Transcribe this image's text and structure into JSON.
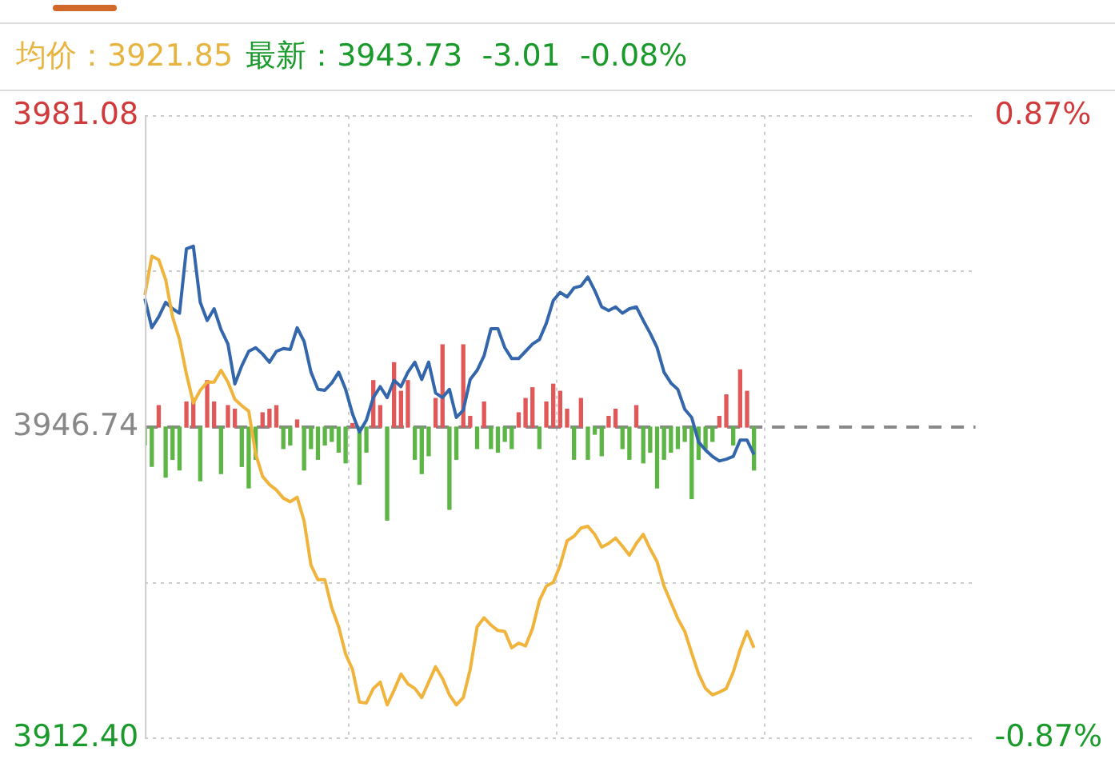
{
  "chart_data": {
    "type": "line",
    "annotations": [
      "均价：3921.85",
      "最新：3943.73  -3.01  -0.08%"
    ],
    "categories": [
      null,
      null,
      null,
      null,
      null,
      null,
      null,
      null,
      null,
      null,
      null,
      null,
      null,
      null,
      null,
      null,
      null,
      null,
      null,
      null,
      null,
      null,
      null,
      null,
      null,
      null,
      null,
      null,
      null,
      null,
      null,
      null,
      null,
      null,
      null,
      null,
      null,
      null,
      null,
      null,
      null,
      null,
      null,
      null,
      null,
      null,
      null,
      null,
      null,
      null,
      null,
      null,
      null,
      null,
      null,
      null,
      null,
      null,
      null,
      null,
      null,
      null,
      null,
      null,
      null,
      null,
      null,
      null,
      null,
      null,
      null,
      null,
      null,
      null,
      null,
      null,
      null,
      null,
      null,
      null,
      null,
      null,
      null,
      null,
      null,
      null,
      null,
      null,
      null,
      null,
      null,
      null,
      null,
      null,
      null,
      null,
      null,
      null,
      null,
      null,
      null,
      null,
      null,
      null,
      null,
      null,
      null,
      null,
      null,
      null,
      null,
      null,
      null,
      null,
      null,
      null,
      null,
      null,
      null,
      null,
      null
    ],
    "series": [
      {
        "type": "bar",
        "axis": "y2",
        "values": [
          -0.05,
          -0.11,
          0.06,
          -0.14,
          -0.09,
          -0.12,
          0.07,
          0.08,
          -0.15,
          0.13,
          0.07,
          -0.13,
          0.06,
          0.05,
          -0.11,
          -0.17,
          -0.09,
          0.04,
          0.05,
          0.06,
          -0.06,
          -0.05,
          0.02,
          -0.12,
          -0.06,
          -0.09,
          -0.05,
          -0.04,
          -0.07,
          -0.1,
          0.01,
          -0.16,
          -0.07,
          0.13,
          0.06,
          -0.26,
          0.18,
          0.1,
          0.13,
          -0.09,
          -0.13,
          -0.08,
          0.08,
          0.23,
          -0.23,
          -0.09,
          0.23,
          0.03,
          -0.06,
          0.07,
          -0.06,
          -0.07,
          -0.04,
          -0.06,
          0.04,
          0.08,
          0.11,
          -0.06,
          0.07,
          0.12,
          0.1,
          0.05,
          -0.09,
          0.08,
          -0.09,
          -0.02,
          -0.08,
          0.03,
          0.05,
          -0.06,
          -0.09,
          0.06,
          -0.1,
          -0.07,
          -0.17,
          -0.09,
          -0.07,
          -0.06,
          -0.04,
          -0.2,
          -0.09,
          -0.06,
          -0.04,
          0.03,
          0.09,
          -0.05,
          0.16,
          0.1,
          -0.12,
          null,
          null,
          null,
          null,
          null,
          null,
          null,
          null,
          null,
          null,
          null,
          null,
          null,
          null,
          null,
          null,
          null,
          null,
          null,
          null,
          null,
          null,
          null,
          null,
          null,
          null,
          null,
          null,
          null,
          null,
          null,
          null
        ],
        "colors": [
          "#5cb544",
          "#5cb544",
          "#e05858",
          "#5cb544",
          "#5cb544",
          "#5cb544",
          "#e05858",
          "#e05858",
          "#5cb544",
          "#e05858",
          "#e05858",
          "#5cb544",
          "#e05858",
          "#e05858",
          "#5cb544",
          "#5cb544",
          "#5cb544",
          "#e05858",
          "#e05858",
          "#e05858",
          "#5cb544",
          "#5cb544",
          "#e05858",
          "#5cb544",
          "#5cb544",
          "#5cb544",
          "#5cb544",
          "#5cb544",
          "#5cb544",
          "#5cb544",
          "#e05858",
          "#5cb544",
          "#5cb544",
          "#e05858",
          "#e05858",
          "#5cb544",
          "#e05858",
          "#e05858",
          "#e05858",
          "#5cb544",
          "#5cb544",
          "#5cb544",
          "#e05858",
          "#e05858",
          "#5cb544",
          "#5cb544",
          "#e05858",
          "#e05858",
          "#5cb544",
          "#e05858",
          "#5cb544",
          "#5cb544",
          "#5cb544",
          "#5cb544",
          "#e05858",
          "#e05858",
          "#e05858",
          "#5cb544",
          "#e05858",
          "#e05858",
          "#e05858",
          "#e05858",
          "#5cb544",
          "#e05858",
          "#5cb544",
          "#5cb544",
          "#5cb544",
          "#e05858",
          "#e05858",
          "#5cb544",
          "#5cb544",
          "#e05858",
          "#5cb544",
          "#5cb544",
          "#5cb544",
          "#5cb544",
          "#5cb544",
          "#5cb544",
          "#5cb544",
          "#5cb544",
          "#5cb544",
          "#5cb544",
          "#5cb544",
          "#e05858",
          "#e05858",
          "#5cb544",
          "#e05858",
          "#e05858",
          "#5cb544",
          null,
          null,
          null,
          null,
          null,
          null,
          null,
          null,
          null,
          null,
          null,
          null,
          null,
          null,
          null,
          null,
          null,
          null,
          null,
          null,
          null,
          null,
          null,
          null,
          null,
          null,
          null,
          null,
          null,
          null,
          null,
          null
        ]
      },
      {
        "color": "#f0b43c",
        "values": [
          3961.3,
          3965.6,
          3965.2,
          3963.0,
          3958.9,
          3956.4,
          3952.6,
          3949.4,
          3950.8,
          3951.7,
          3951.7,
          3953.0,
          3951.7,
          3949.8,
          3949.1,
          3948.5,
          3943.8,
          3941.3,
          3940.4,
          3939.8,
          3938.9,
          3938.5,
          3939.0,
          3936.4,
          3931.5,
          3929.9,
          3929.9,
          3926.8,
          3924.7,
          3921.7,
          3920.0,
          3916.4,
          3916.3,
          3917.9,
          3918.6,
          3916.1,
          3917.7,
          3919.5,
          3918.4,
          3917.9,
          3916.9,
          3918.6,
          3920.3,
          3919.0,
          3917.2,
          3916.1,
          3916.9,
          3920.0,
          3924.7,
          3925.7,
          3924.9,
          3924.3,
          3924.2,
          3922.4,
          3922.9,
          3922.6,
          3924.5,
          3927.6,
          3929.2,
          3929.6,
          3931.5,
          3934.2,
          3934.7,
          3935.6,
          3935.8,
          3934.9,
          3933.5,
          3933.9,
          3934.5,
          3933.6,
          3932.6,
          3933.9,
          3934.9,
          3933.3,
          3931.9,
          3929.2,
          3927.4,
          3925.6,
          3924.2,
          3921.8,
          3919.5,
          3917.9,
          3917.2,
          3917.5,
          3917.9,
          3919.7,
          3922.2,
          3924.2,
          3922.4,
          null,
          null,
          null,
          null,
          null,
          null,
          null,
          null,
          null,
          null,
          null,
          null,
          null,
          null,
          null,
          null,
          null,
          null,
          null,
          null,
          null,
          null,
          null,
          null,
          null,
          null,
          null,
          null,
          null,
          null,
          null,
          null
        ]
      },
      {
        "color": "#3366aa",
        "values": [
          3960.9,
          3957.7,
          3958.9,
          3960.5,
          3959.8,
          3959.3,
          3966.4,
          3966.7,
          3960.5,
          3958.5,
          3959.8,
          3957.5,
          3955.9,
          3951.5,
          3953.5,
          3955.1,
          3955.5,
          3954.8,
          3953.9,
          3955.1,
          3955.4,
          3955.3,
          3957.7,
          3956.2,
          3952.8,
          3950.9,
          3950.8,
          3951.6,
          3952.8,
          3950.9,
          3948.2,
          3946.2,
          3947.5,
          3950.0,
          3951.2,
          3950.0,
          3951.9,
          3951.2,
          3952.8,
          3953.9,
          3952.0,
          3953.9,
          3950.5,
          3950.0,
          3950.9,
          3947.8,
          3948.6,
          3952.0,
          3953.0,
          3954.6,
          3957.6,
          3957.6,
          3955.5,
          3954.3,
          3954.3,
          3955.1,
          3955.9,
          3956.4,
          3958.2,
          3960.7,
          3961.6,
          3961.1,
          3962.1,
          3962.3,
          3963.3,
          3961.8,
          3960.0,
          3959.6,
          3960.0,
          3959.3,
          3959.8,
          3960.0,
          3958.5,
          3957.1,
          3955.5,
          3952.8,
          3951.6,
          3950.9,
          3948.7,
          3947.8,
          3945.1,
          3944.2,
          3943.5,
          3943.0,
          3943.2,
          3943.5,
          3945.3,
          3945.3,
          3943.7,
          null,
          null,
          null,
          null,
          null,
          null,
          null,
          null,
          null,
          null,
          null,
          null,
          null,
          null,
          null,
          null,
          null,
          null,
          null,
          null,
          null,
          null,
          null,
          null,
          null,
          null,
          null,
          null,
          null,
          null,
          null,
          null
        ]
      }
    ],
    "ylim": [
      3912.4,
      3981.08
    ],
    "yticks": [
      3981.08,
      {
        "value": 3963.91,
        "label": null
      },
      3946.74,
      {
        "value": 3929.57,
        "label": null
      },
      {
        "value": 3912.4,
        "label": "3912.40"
      }
    ],
    "y2lim": [
      -0.87,
      0.87
    ],
    "y2ticks": [
      {
        "value": 0.87,
        "label": "0.87%"
      },
      {
        "value": -0.87,
        "label": "-0.87%"
      }
    ],
    "ref_lines": [
      {
        "axis": "y",
        "value": 3946.74,
        "color": "#888888",
        "line_style": "dashed"
      }
    ],
    "grid": true,
    "legend": false,
    "marker": "none",
    "line_style": "solid"
  }
}
